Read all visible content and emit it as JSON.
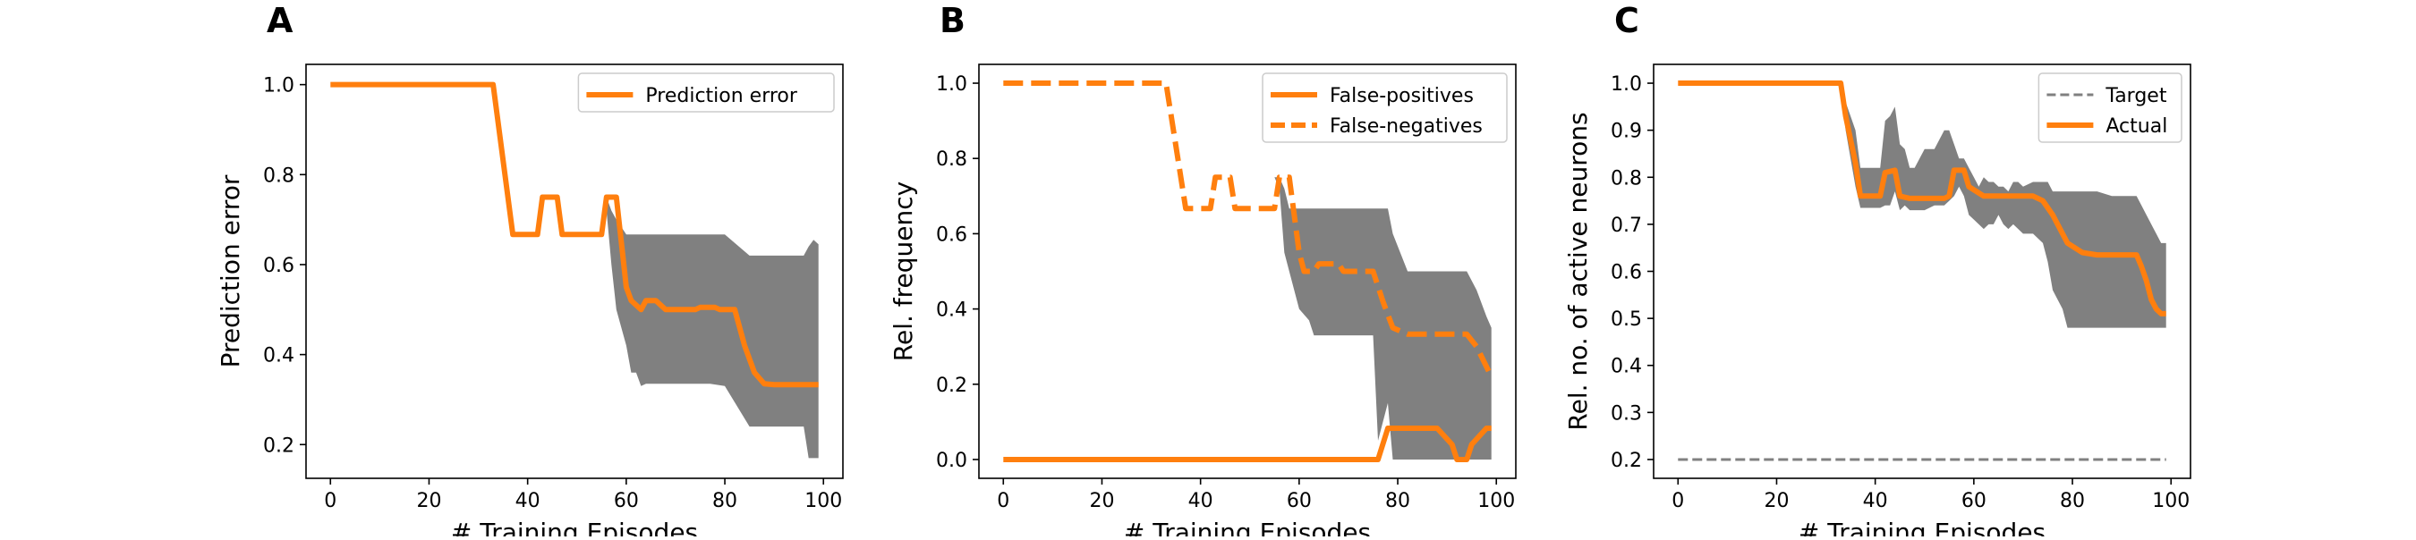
{
  "colors": {
    "line": "#ff7f0e",
    "band": "#808080",
    "target": "#808080",
    "axis": "#000000"
  },
  "chart_data": [
    {
      "type": "line",
      "panel_label": "A",
      "xlabel": "# Training Episodes",
      "ylabel": "Prediction error",
      "xlim": [
        -4.95,
        103.95
      ],
      "ylim": [
        0.125,
        1.045
      ],
      "xticks": [
        0,
        20,
        40,
        60,
        80,
        100
      ],
      "yticks": [
        0.2,
        0.4,
        0.6,
        0.8,
        1.0
      ],
      "ytick_labels": [
        "0.2",
        "0.4",
        "0.6",
        "0.8",
        "1.0"
      ],
      "legend": {
        "position": "top-right",
        "entries": [
          {
            "label": "Prediction error",
            "style": "solid"
          }
        ]
      },
      "series": [
        {
          "name": "Prediction error",
          "style": "solid",
          "x": [
            0,
            33,
            37,
            42,
            43,
            46,
            47,
            55,
            56,
            58,
            60,
            61,
            63,
            64,
            66,
            68,
            69,
            74,
            75,
            78,
            79,
            82,
            84,
            86,
            88,
            90,
            99
          ],
          "y": [
            1.0,
            1.0,
            0.667,
            0.667,
            0.75,
            0.75,
            0.667,
            0.667,
            0.75,
            0.75,
            0.55,
            0.52,
            0.5,
            0.52,
            0.52,
            0.5,
            0.5,
            0.5,
            0.505,
            0.505,
            0.5,
            0.5,
            0.42,
            0.36,
            0.335,
            0.333,
            0.333
          ]
        }
      ],
      "band": {
        "x": [
          56,
          57,
          58,
          60,
          61,
          62,
          63,
          64,
          65,
          66,
          70,
          72,
          74,
          77,
          80,
          85,
          86,
          88,
          90,
          92,
          94,
          96,
          97,
          98,
          99
        ],
        "upper": [
          0.75,
          0.72,
          0.7,
          0.667,
          0.667,
          0.667,
          0.667,
          0.667,
          0.667,
          0.667,
          0.667,
          0.667,
          0.667,
          0.667,
          0.667,
          0.62,
          0.62,
          0.62,
          0.62,
          0.62,
          0.62,
          0.62,
          0.64,
          0.655,
          0.645
        ],
        "lower": [
          0.72,
          0.6,
          0.5,
          0.42,
          0.36,
          0.36,
          0.33,
          0.335,
          0.335,
          0.335,
          0.335,
          0.335,
          0.335,
          0.335,
          0.33,
          0.24,
          0.24,
          0.24,
          0.24,
          0.24,
          0.24,
          0.24,
          0.17,
          0.17,
          0.17
        ]
      }
    },
    {
      "type": "line",
      "panel_label": "B",
      "xlabel": "# Training Episodes",
      "ylabel": "Rel. frequency",
      "xlim": [
        -4.95,
        103.95
      ],
      "ylim": [
        -0.05,
        1.05
      ],
      "xticks": [
        0,
        20,
        40,
        60,
        80,
        100
      ],
      "yticks": [
        0.0,
        0.2,
        0.4,
        0.6,
        0.8,
        1.0
      ],
      "ytick_labels": [
        "0.0",
        "0.2",
        "0.4",
        "0.6",
        "0.8",
        "1.0"
      ],
      "legend": {
        "position": "top-right",
        "entries": [
          {
            "label": "False-positives",
            "style": "solid"
          },
          {
            "label": "False-negatives",
            "style": "dashed"
          }
        ]
      },
      "series": [
        {
          "name": "False-positives",
          "style": "solid",
          "x": [
            0,
            75,
            76,
            78,
            79,
            87,
            88,
            91,
            92,
            94,
            95,
            98,
            99
          ],
          "y": [
            0,
            0,
            0,
            0.083,
            0.083,
            0.083,
            0.083,
            0.04,
            0,
            0,
            0.04,
            0.083,
            0.083
          ]
        },
        {
          "name": "False-negatives",
          "style": "dashed",
          "x": [
            0,
            33,
            37,
            42,
            43,
            46,
            47,
            55,
            56,
            58,
            60,
            61,
            63,
            64,
            66,
            68,
            69,
            74,
            75,
            77,
            79,
            82,
            88,
            89,
            94,
            96,
            99
          ],
          "y": [
            1.0,
            1.0,
            0.667,
            0.667,
            0.75,
            0.75,
            0.667,
            0.667,
            0.75,
            0.75,
            0.55,
            0.5,
            0.5,
            0.52,
            0.52,
            0.52,
            0.5,
            0.5,
            0.5,
            0.42,
            0.35,
            0.333,
            0.333,
            0.333,
            0.333,
            0.3,
            0.22
          ]
        }
      ],
      "band": {
        "x": [
          55,
          56,
          57,
          58,
          60,
          62,
          63,
          65,
          70,
          75,
          76,
          78,
          79,
          82,
          85,
          88,
          90,
          92,
          94,
          96,
          98,
          99
        ],
        "upper": [
          0.75,
          0.75,
          0.72,
          0.667,
          0.667,
          0.667,
          0.667,
          0.667,
          0.667,
          0.667,
          0.667,
          0.667,
          0.6,
          0.5,
          0.5,
          0.5,
          0.5,
          0.5,
          0.5,
          0.45,
          0.38,
          0.35
        ],
        "lower": [
          0.75,
          0.72,
          0.55,
          0.5,
          0.4,
          0.37,
          0.33,
          0.33,
          0.33,
          0.33,
          0.05,
          0.15,
          0.0,
          0.0,
          0.0,
          0.0,
          0.0,
          0.0,
          0.0,
          0.0,
          0.0,
          0.0
        ]
      }
    },
    {
      "type": "line",
      "panel_label": "C",
      "xlabel": "# Training Episodes",
      "ylabel": "Rel. no. of active neurons",
      "xlim": [
        -4.95,
        103.95
      ],
      "ylim": [
        0.16,
        1.04
      ],
      "xticks": [
        0,
        20,
        40,
        60,
        80,
        100
      ],
      "yticks": [
        0.2,
        0.3,
        0.4,
        0.5,
        0.6,
        0.7,
        0.8,
        0.9,
        1.0
      ],
      "ytick_labels": [
        "0.2",
        "0.3",
        "0.4",
        "0.5",
        "0.6",
        "0.7",
        "0.8",
        "0.9",
        "1.0"
      ],
      "legend": {
        "position": "top-right",
        "entries": [
          {
            "label": "Target",
            "style": "target"
          },
          {
            "label": "Actual",
            "style": "solid"
          }
        ]
      },
      "target": {
        "x": [
          0,
          99
        ],
        "y": [
          0.2,
          0.2
        ]
      },
      "series": [
        {
          "name": "Actual",
          "style": "solid",
          "x": [
            0,
            33,
            34,
            36,
            37,
            41,
            42,
            44,
            45,
            47,
            54,
            55,
            56,
            57,
            58,
            59,
            62,
            64,
            65,
            70,
            72,
            74,
            76,
            78,
            79,
            82,
            85,
            89,
            93,
            94,
            95,
            96,
            97,
            98,
            99
          ],
          "y": [
            1.0,
            1.0,
            0.93,
            0.83,
            0.76,
            0.76,
            0.81,
            0.815,
            0.76,
            0.755,
            0.755,
            0.76,
            0.815,
            0.815,
            0.815,
            0.78,
            0.76,
            0.76,
            0.76,
            0.76,
            0.76,
            0.75,
            0.72,
            0.68,
            0.66,
            0.64,
            0.635,
            0.635,
            0.635,
            0.61,
            0.58,
            0.54,
            0.52,
            0.51,
            0.51
          ]
        }
      ],
      "band": {
        "x": [
          33,
          34,
          36,
          37,
          41,
          42,
          43,
          44,
          45,
          46,
          47,
          48,
          50,
          52,
          54,
          55,
          56,
          57,
          58,
          59,
          60,
          61,
          62,
          63,
          64,
          65,
          66,
          67,
          68,
          69,
          70,
          72,
          74,
          75,
          76,
          78,
          79,
          80,
          82,
          85,
          88,
          90,
          92,
          93,
          94,
          95,
          96,
          97,
          98,
          99
        ],
        "upper": [
          1.0,
          0.96,
          0.9,
          0.82,
          0.82,
          0.92,
          0.93,
          0.95,
          0.87,
          0.86,
          0.82,
          0.82,
          0.86,
          0.86,
          0.9,
          0.9,
          0.87,
          0.84,
          0.84,
          0.82,
          0.8,
          0.78,
          0.8,
          0.79,
          0.79,
          0.78,
          0.78,
          0.77,
          0.79,
          0.79,
          0.78,
          0.79,
          0.79,
          0.79,
          0.77,
          0.77,
          0.77,
          0.77,
          0.77,
          0.77,
          0.76,
          0.76,
          0.76,
          0.76,
          0.74,
          0.72,
          0.7,
          0.68,
          0.66,
          0.66
        ],
        "lower": [
          1.0,
          0.9,
          0.78,
          0.735,
          0.735,
          0.74,
          0.74,
          0.77,
          0.73,
          0.74,
          0.73,
          0.73,
          0.73,
          0.74,
          0.74,
          0.75,
          0.76,
          0.78,
          0.76,
          0.72,
          0.71,
          0.7,
          0.69,
          0.7,
          0.7,
          0.72,
          0.7,
          0.69,
          0.7,
          0.69,
          0.68,
          0.68,
          0.66,
          0.62,
          0.56,
          0.52,
          0.48,
          0.48,
          0.48,
          0.48,
          0.48,
          0.48,
          0.48,
          0.48,
          0.48,
          0.48,
          0.48,
          0.48,
          0.48,
          0.48
        ]
      }
    }
  ]
}
